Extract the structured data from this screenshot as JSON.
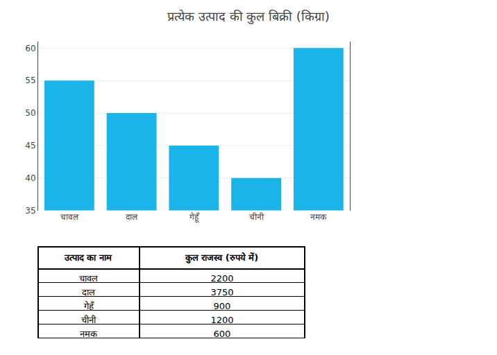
{
  "chart_data": [
    {
      "type": "bar",
      "title": "प्रत्येक उत्पाद की कुल बिक्री (किग्रा)",
      "categories": [
        "चावल",
        "दाल",
        "गेहूँ",
        "चीनी",
        "नमक"
      ],
      "values": [
        55,
        50,
        45,
        40,
        60
      ],
      "color": "#1BB4E8",
      "ylim": [
        35,
        61
      ],
      "yticks": [
        35,
        40,
        45,
        50,
        55,
        60
      ],
      "grid": true
    },
    {
      "type": "table",
      "columns": [
        "उत्पाद का नाम",
        "कुल राजस्व (रुपये में)"
      ],
      "rows": [
        [
          "चावल",
          "2200"
        ],
        [
          "दाल",
          "3750"
        ],
        [
          "गेहूँ",
          "900"
        ],
        [
          "चीनी",
          "1200"
        ],
        [
          "नमक",
          "600"
        ]
      ]
    }
  ]
}
